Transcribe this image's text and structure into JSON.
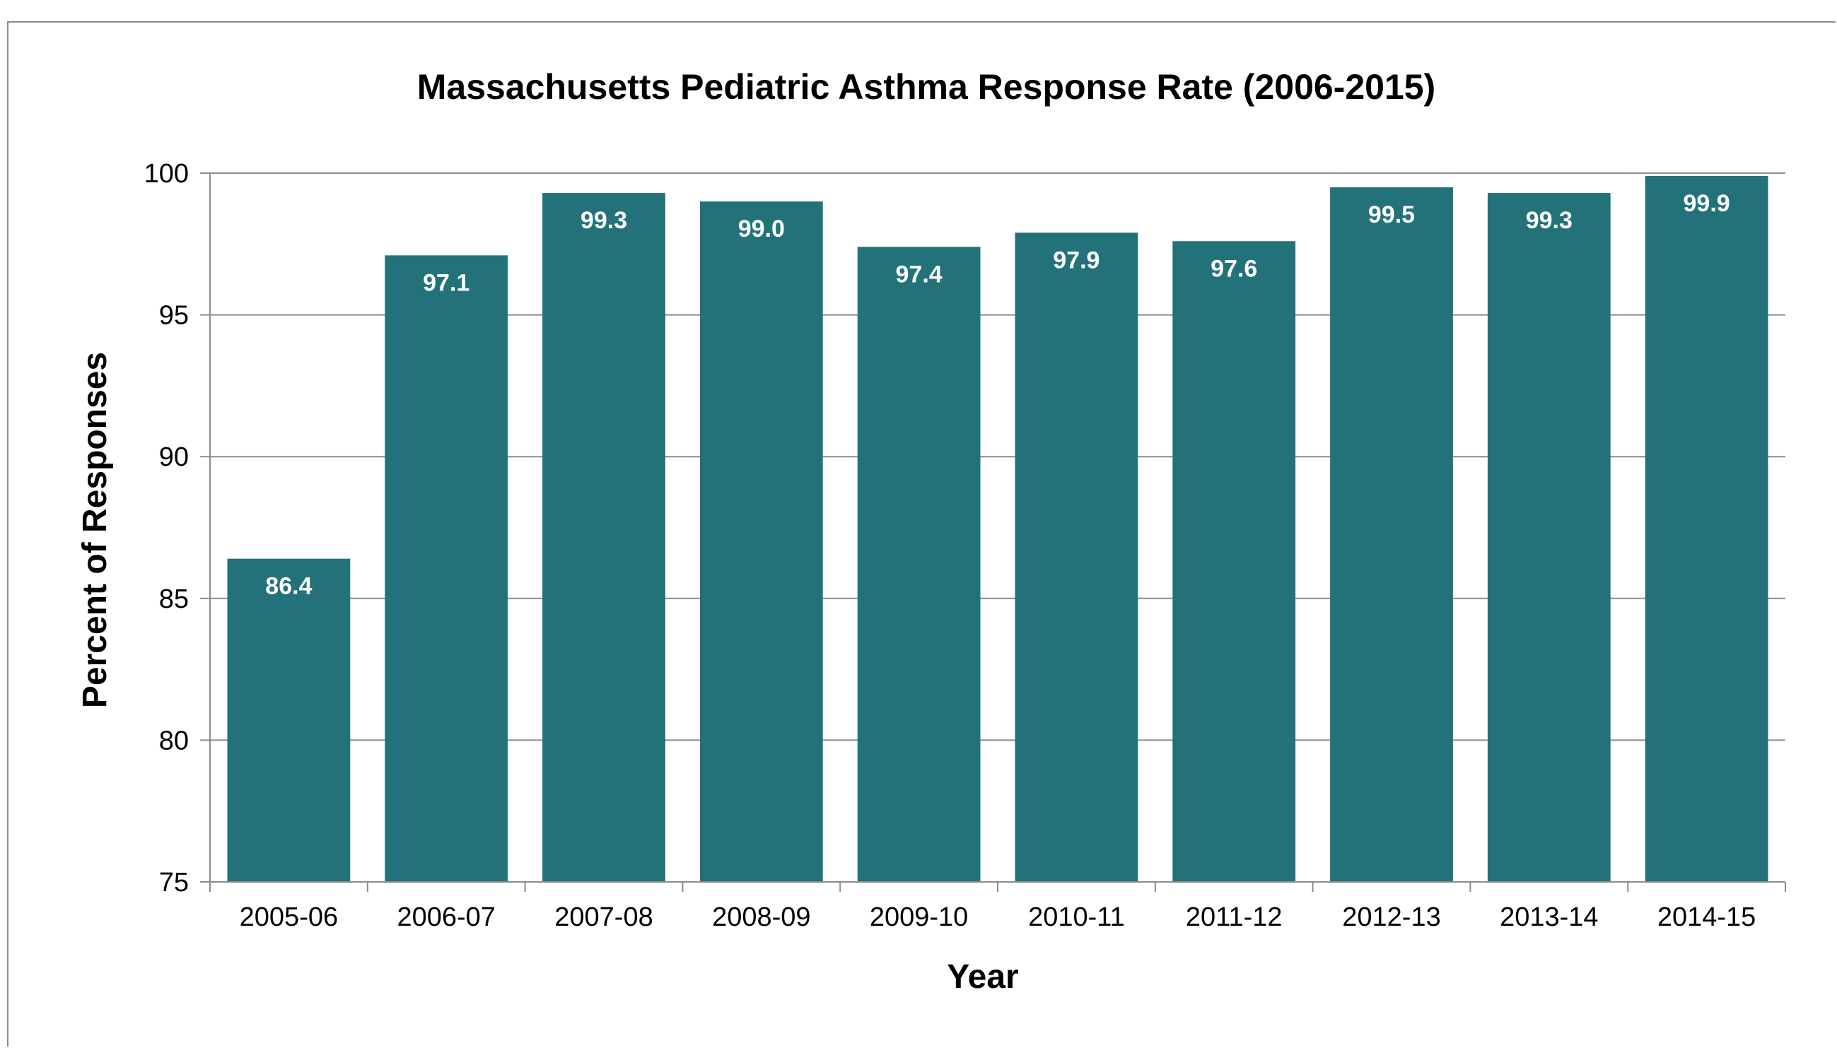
{
  "chart_data": {
    "type": "bar",
    "title": "Massachusetts Pediatric Asthma Response Rate (2006-2015)",
    "xlabel": "Year",
    "ylabel": "Percent of Responses",
    "categories": [
      "2005-06",
      "2006-07",
      "2007-08",
      "2008-09",
      "2009-10",
      "2010-11",
      "2011-12",
      "2012-13",
      "2013-14",
      "2014-15"
    ],
    "values": [
      86.4,
      97.1,
      99.3,
      99.0,
      97.4,
      97.9,
      97.6,
      99.5,
      99.3,
      99.9
    ],
    "data_labels": [
      "86.4",
      "97.1",
      "99.3",
      "99.0",
      "97.4",
      "97.9",
      "97.6",
      "99.5",
      "99.3",
      "99.9"
    ],
    "ylim": [
      75,
      100
    ],
    "yticks": [
      75,
      80,
      85,
      90,
      95,
      100
    ],
    "grid": true,
    "legend": "none",
    "bar_color": "#23727a"
  }
}
